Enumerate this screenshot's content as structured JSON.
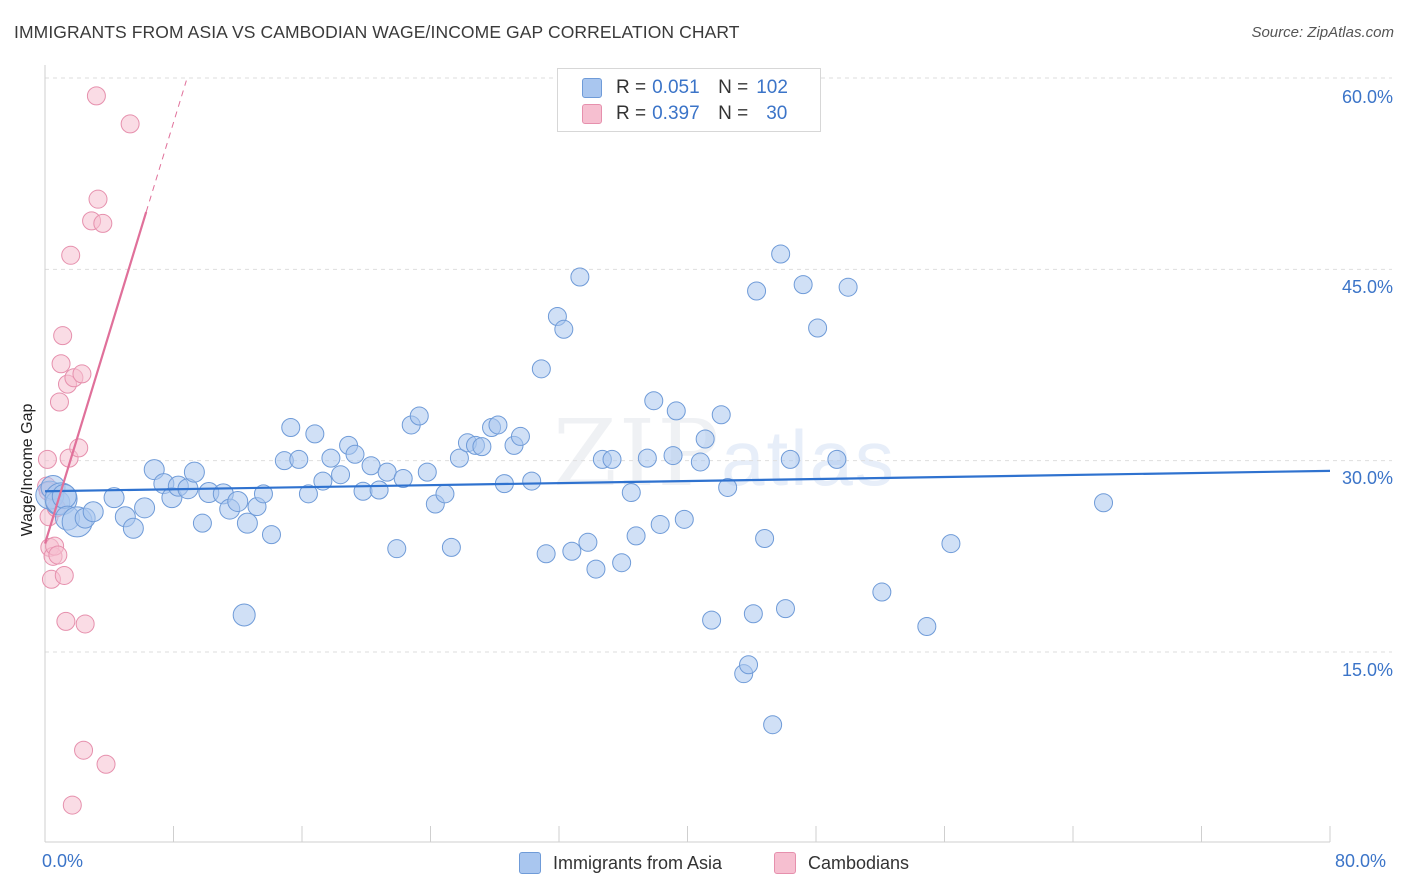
{
  "title": "IMMIGRANTS FROM ASIA VS CAMBODIAN WAGE/INCOME GAP CORRELATION CHART",
  "source": "Source: ZipAtlas.com",
  "watermark": {
    "zip": "ZIP",
    "atlas": "atlas"
  },
  "legend": {
    "rows": [
      {
        "r_label": "R =",
        "r_value": "0.051",
        "n_label": "N =",
        "n_value": "102"
      },
      {
        "r_label": "R =",
        "r_value": "0.397",
        "n_label": "N =",
        "n_value": "30"
      }
    ]
  },
  "bottom_legend": [
    "Immigrants from Asia",
    "Cambodians"
  ],
  "colors": {
    "asia_fill": "#a9c6ef",
    "asia_stroke": "#6f9bd8",
    "asia_line": "#2f72cf",
    "camb_fill": "#f6bfd0",
    "camb_stroke": "#e690ad",
    "camb_line": "#e0709a",
    "grid": "#dedede",
    "tick_text": "#3b74c8"
  },
  "chart_data": {
    "type": "scatter",
    "title": "IMMIGRANTS FROM ASIA VS CAMBODIAN WAGE/INCOME GAP CORRELATION CHART",
    "xlabel": "",
    "ylabel": "Wage/Income Gap",
    "xlim": [
      0,
      80
    ],
    "ylim": [
      0,
      63
    ],
    "x_tick_labels": [
      "0.0%",
      "80.0%"
    ],
    "y_ticks": [
      15,
      30,
      45,
      60
    ],
    "y_tick_labels": [
      "15.0%",
      "30.0%",
      "45.0%",
      "60.0%"
    ],
    "grid": true,
    "series": [
      {
        "name": "Immigrants from Asia",
        "R": 0.051,
        "N": 102,
        "trend": {
          "x": [
            0,
            80
          ],
          "y": [
            27.6,
            29.2
          ]
        },
        "points": [
          [
            0.3,
            27.3,
            14
          ],
          [
            0.5,
            27.9,
            12
          ],
          [
            0.8,
            26.7,
            12
          ],
          [
            1.0,
            27.0,
            16
          ],
          [
            1.2,
            27.2,
            12
          ],
          [
            1.4,
            25.5,
            12
          ],
          [
            2.0,
            25.2,
            15
          ],
          [
            2.5,
            25.5,
            10
          ],
          [
            3.0,
            26.0,
            10
          ],
          [
            4.3,
            27.1,
            10
          ],
          [
            5.0,
            25.6,
            10
          ],
          [
            5.5,
            24.7,
            10
          ],
          [
            6.2,
            26.3,
            10
          ],
          [
            6.8,
            29.3,
            10
          ],
          [
            7.4,
            28.2,
            10
          ],
          [
            7.9,
            27.1,
            10
          ],
          [
            8.3,
            28.0,
            10
          ],
          [
            8.9,
            27.8,
            10
          ],
          [
            9.3,
            29.1,
            10
          ],
          [
            9.8,
            25.1,
            9
          ],
          [
            10.2,
            27.5,
            10
          ],
          [
            11.1,
            27.4,
            10
          ],
          [
            11.5,
            26.2,
            10
          ],
          [
            12.0,
            26.8,
            10
          ],
          [
            12.4,
            17.9,
            11
          ],
          [
            12.6,
            25.1,
            10
          ],
          [
            13.2,
            26.4,
            9
          ],
          [
            13.6,
            27.4,
            9
          ],
          [
            14.1,
            24.2,
            9
          ],
          [
            14.9,
            30.0,
            9
          ],
          [
            15.3,
            32.6,
            9
          ],
          [
            15.8,
            30.1,
            9
          ],
          [
            16.4,
            27.4,
            9
          ],
          [
            16.8,
            32.1,
            9
          ],
          [
            17.3,
            28.4,
            9
          ],
          [
            17.8,
            30.2,
            9
          ],
          [
            18.4,
            28.9,
            9
          ],
          [
            18.9,
            31.2,
            9
          ],
          [
            19.3,
            30.5,
            9
          ],
          [
            19.8,
            27.6,
            9
          ],
          [
            20.3,
            29.6,
            9
          ],
          [
            20.8,
            27.7,
            9
          ],
          [
            21.3,
            29.1,
            9
          ],
          [
            21.9,
            23.1,
            9
          ],
          [
            22.3,
            28.6,
            9
          ],
          [
            22.8,
            32.8,
            9
          ],
          [
            23.3,
            33.5,
            9
          ],
          [
            23.8,
            29.1,
            9
          ],
          [
            24.3,
            26.6,
            9
          ],
          [
            24.9,
            27.4,
            9
          ],
          [
            25.3,
            23.2,
            9
          ],
          [
            25.8,
            30.2,
            9
          ],
          [
            26.3,
            31.4,
            9
          ],
          [
            26.8,
            31.2,
            9
          ],
          [
            27.2,
            31.1,
            9
          ],
          [
            27.8,
            32.6,
            9
          ],
          [
            28.2,
            32.8,
            9
          ],
          [
            28.6,
            28.2,
            9
          ],
          [
            29.2,
            31.2,
            9
          ],
          [
            29.6,
            31.9,
            9
          ],
          [
            30.3,
            28.4,
            9
          ],
          [
            30.9,
            37.2,
            9
          ],
          [
            31.2,
            22.7,
            9
          ],
          [
            31.9,
            41.3,
            9
          ],
          [
            32.3,
            40.3,
            9
          ],
          [
            32.8,
            22.9,
            9
          ],
          [
            33.3,
            44.4,
            9
          ],
          [
            33.8,
            23.6,
            9
          ],
          [
            34.3,
            21.5,
            9
          ],
          [
            34.7,
            30.1,
            9
          ],
          [
            35.3,
            30.1,
            9
          ],
          [
            35.9,
            22.0,
            9
          ],
          [
            36.5,
            27.5,
            9
          ],
          [
            36.8,
            24.1,
            9
          ],
          [
            37.5,
            30.2,
            9
          ],
          [
            37.9,
            34.7,
            9
          ],
          [
            38.3,
            25.0,
            9
          ],
          [
            39.1,
            30.4,
            9
          ],
          [
            39.3,
            33.9,
            9
          ],
          [
            39.8,
            25.4,
            9
          ],
          [
            40.8,
            29.9,
            9
          ],
          [
            41.1,
            31.7,
            9
          ],
          [
            41.5,
            17.5,
            9
          ],
          [
            42.1,
            33.6,
            9
          ],
          [
            42.5,
            27.9,
            9
          ],
          [
            43.5,
            13.3,
            9
          ],
          [
            43.8,
            14.0,
            9
          ],
          [
            44.1,
            18.0,
            9
          ],
          [
            44.3,
            43.3,
            9
          ],
          [
            44.8,
            23.9,
            9
          ],
          [
            45.3,
            9.3,
            9
          ],
          [
            45.8,
            46.2,
            9
          ],
          [
            46.1,
            18.4,
            9
          ],
          [
            46.4,
            30.1,
            9
          ],
          [
            47.2,
            43.8,
            9
          ],
          [
            48.1,
            40.4,
            9
          ],
          [
            49.3,
            30.1,
            9
          ],
          [
            50.0,
            43.6,
            9
          ],
          [
            52.1,
            19.7,
            9
          ],
          [
            54.9,
            17.0,
            9
          ],
          [
            56.4,
            23.5,
            9
          ],
          [
            65.9,
            26.7,
            9
          ]
        ]
      },
      {
        "name": "Cambodians",
        "R": 0.397,
        "N": 30,
        "trend": {
          "x": [
            0,
            6.3
          ],
          "y": [
            23.5,
            49.5
          ],
          "extended": {
            "x": [
              6.3,
              8.8
            ],
            "y": [
              49.5,
              59.8
            ]
          }
        },
        "points": [
          [
            0.1,
            28.0,
            9
          ],
          [
            0.15,
            30.1,
            9
          ],
          [
            0.2,
            27.6,
            9
          ],
          [
            0.25,
            25.6,
            9
          ],
          [
            0.3,
            23.2,
            9
          ],
          [
            0.4,
            20.7,
            9
          ],
          [
            0.5,
            22.5,
            9
          ],
          [
            0.6,
            23.3,
            9
          ],
          [
            0.7,
            26.3,
            9
          ],
          [
            0.8,
            22.6,
            9
          ],
          [
            0.9,
            34.6,
            9
          ],
          [
            1.0,
            37.6,
            9
          ],
          [
            1.1,
            39.8,
            9
          ],
          [
            1.2,
            21.0,
            9
          ],
          [
            1.3,
            17.4,
            9
          ],
          [
            1.4,
            36.0,
            9
          ],
          [
            1.5,
            30.2,
            9
          ],
          [
            1.6,
            46.1,
            9
          ],
          [
            1.8,
            36.5,
            9
          ],
          [
            2.1,
            31.0,
            9
          ],
          [
            2.3,
            36.8,
            9
          ],
          [
            2.4,
            7.3,
            9
          ],
          [
            2.5,
            17.2,
            9
          ],
          [
            2.9,
            48.8,
            9
          ],
          [
            3.2,
            58.6,
            9
          ],
          [
            3.3,
            50.5,
            9
          ],
          [
            3.6,
            48.6,
            9
          ],
          [
            3.8,
            6.2,
            9
          ],
          [
            5.3,
            56.4,
            9
          ],
          [
            1.7,
            3.0,
            9
          ]
        ]
      }
    ]
  }
}
